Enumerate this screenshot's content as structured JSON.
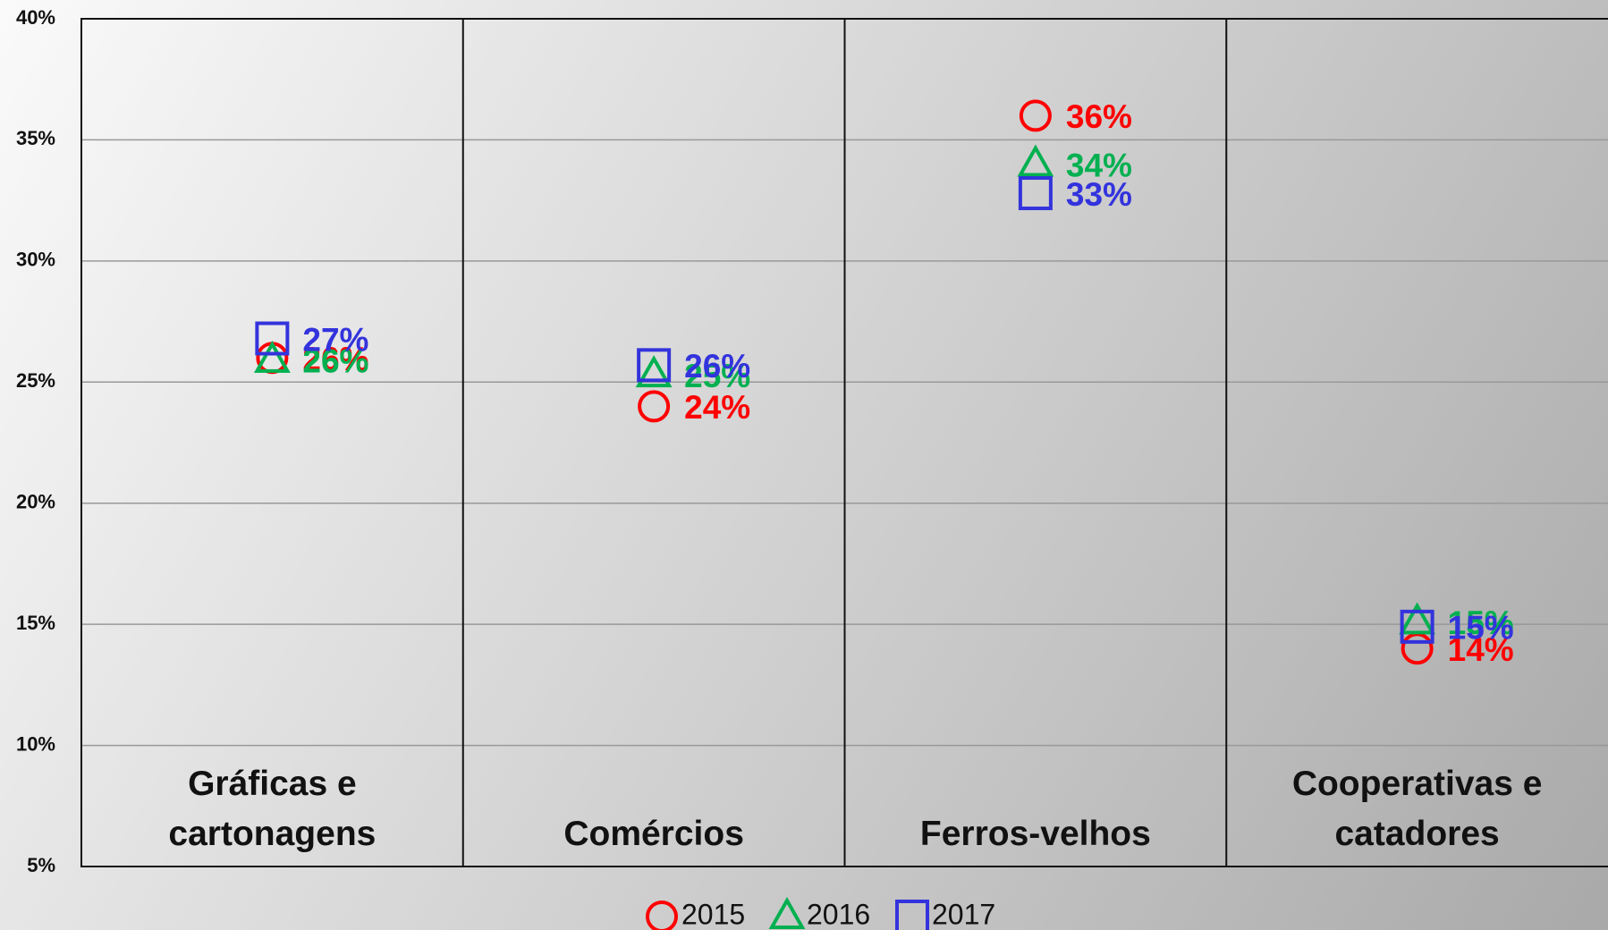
{
  "chart_data": {
    "type": "scatter",
    "categories": [
      "Gráficas e cartonagens",
      "Comércios",
      "Ferros-velhos",
      "Cooperativas e catadores"
    ],
    "series": [
      {
        "name": "2015",
        "color": "#ff0000",
        "marker": "circle",
        "values": [
          26.0,
          24.0,
          36.0,
          14.0
        ],
        "value_labels": [
          "26%",
          "24%",
          "36%",
          "14%"
        ]
      },
      {
        "name": "2016",
        "color": "#00b050",
        "marker": "triangle",
        "values": [
          25.9,
          25.3,
          34.0,
          15.1
        ],
        "value_labels": [
          "26%",
          "25%",
          "34%",
          "15%"
        ]
      },
      {
        "name": "2017",
        "color": "#3333dd",
        "marker": "square",
        "values": [
          26.8,
          25.7,
          32.8,
          14.9
        ],
        "value_labels": [
          "27%",
          "26%",
          "33%",
          "15%"
        ]
      }
    ],
    "ylim": [
      5,
      40
    ],
    "yticks": [
      {
        "value": 5,
        "label": "5%"
      },
      {
        "value": 10,
        "label": "10%"
      },
      {
        "value": 15,
        "label": "15%"
      },
      {
        "value": 20,
        "label": "20%"
      },
      {
        "value": 25,
        "label": "25%"
      },
      {
        "value": 30,
        "label": "30%"
      },
      {
        "value": 35,
        "label": "35%"
      },
      {
        "value": 40,
        "label": "40%"
      }
    ],
    "grid": true,
    "legend": "bottom"
  }
}
